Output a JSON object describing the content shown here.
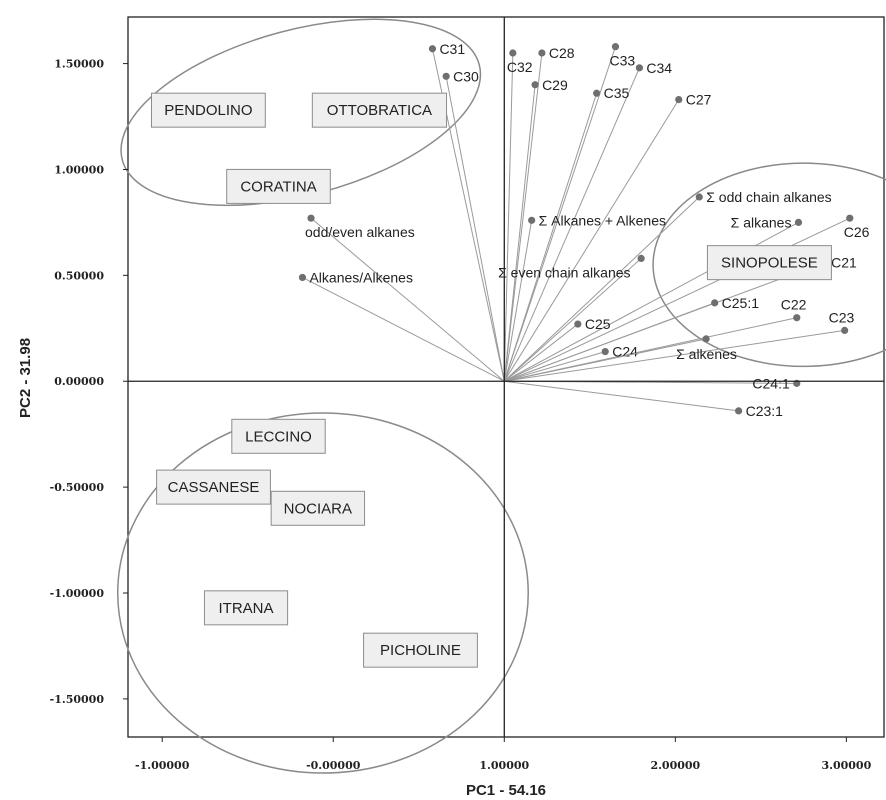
{
  "chart_data": {
    "type": "scatter",
    "subtype": "pca-biplot",
    "xlabel": "PC1 - 54.16",
    "ylabel": "PC2 - 31.98",
    "xlim": [
      -1.2,
      3.22
    ],
    "ylim": [
      -1.68,
      1.72
    ],
    "x_ticks": [
      {
        "value": -1.0,
        "label": "-1.00000"
      },
      {
        "value": 0.0,
        "label": "-0.00000"
      },
      {
        "value": 1.0,
        "label": "1.00000"
      },
      {
        "value": 2.0,
        "label": "2.00000"
      },
      {
        "value": 3.0,
        "label": "3.00000"
      }
    ],
    "y_ticks": [
      {
        "value": 1.5,
        "label": "1.50000"
      },
      {
        "value": 1.0,
        "label": "1.00000"
      },
      {
        "value": 0.5,
        "label": "0.50000"
      },
      {
        "value": 0.0,
        "label": "0.00000"
      },
      {
        "value": -0.5,
        "label": "-0.50000"
      },
      {
        "value": -1.0,
        "label": "-1.00000"
      },
      {
        "value": -1.5,
        "label": "-1.50000"
      }
    ],
    "origin": [
      1.0,
      0.0
    ],
    "grid": false,
    "variables": [
      {
        "name": "C31",
        "x": 0.58,
        "y": 1.57,
        "label_pos": "right"
      },
      {
        "name": "C30",
        "x": 0.66,
        "y": 1.44,
        "label_pos": "right"
      },
      {
        "name": "C32",
        "x": 1.05,
        "y": 1.55,
        "label_pos": "below"
      },
      {
        "name": "C28",
        "x": 1.22,
        "y": 1.55,
        "label_pos": "right"
      },
      {
        "name": "C29",
        "x": 1.18,
        "y": 1.4,
        "label_pos": "right"
      },
      {
        "name": "C33",
        "x": 1.65,
        "y": 1.58,
        "label_pos": "below"
      },
      {
        "name": "C34",
        "x": 1.79,
        "y": 1.48,
        "label_pos": "right"
      },
      {
        "name": "C35",
        "x": 1.54,
        "y": 1.36,
        "label_pos": "right"
      },
      {
        "name": "C27",
        "x": 2.02,
        "y": 1.33,
        "label_pos": "right"
      },
      {
        "name": "Σ odd chain alkanes",
        "x": 2.14,
        "y": 0.87,
        "label_pos": "right"
      },
      {
        "name": "Σ Alkanes + Alkenes",
        "x": 1.16,
        "y": 0.76,
        "label_pos": "right"
      },
      {
        "name": "Σ alkanes",
        "x": 2.72,
        "y": 0.75,
        "label_pos": "left"
      },
      {
        "name": "C26",
        "x": 3.02,
        "y": 0.77,
        "label_pos": "below"
      },
      {
        "name": "Σ even chain alkanes",
        "x": 1.8,
        "y": 0.58,
        "label_pos": "belowleft"
      },
      {
        "name": "C21",
        "x": 2.87,
        "y": 0.56,
        "label_pos": "right"
      },
      {
        "name": "C25:1",
        "x": 2.23,
        "y": 0.37,
        "label_pos": "right"
      },
      {
        "name": "C22",
        "x": 2.71,
        "y": 0.3,
        "label_pos": "above"
      },
      {
        "name": "C23",
        "x": 2.99,
        "y": 0.24,
        "label_pos": "above"
      },
      {
        "name": "C25",
        "x": 1.43,
        "y": 0.27,
        "label_pos": "right"
      },
      {
        "name": "C24",
        "x": 1.59,
        "y": 0.14,
        "label_pos": "right"
      },
      {
        "name": "Σ alkenes",
        "x": 2.18,
        "y": 0.2,
        "label_pos": "belowright"
      },
      {
        "name": "C24:1",
        "x": 2.71,
        "y": -0.01,
        "label_pos": "left"
      },
      {
        "name": "C23:1",
        "x": 2.37,
        "y": -0.14,
        "label_pos": "right"
      },
      {
        "name": "odd/even alkanes",
        "x": -0.13,
        "y": 0.77,
        "label_pos": "below"
      },
      {
        "name": "Alkanes/Alkenes",
        "x": -0.18,
        "y": 0.49,
        "label_pos": "right"
      }
    ],
    "groups": [
      {
        "name": "PENDOLINO",
        "x": -0.73,
        "y": 1.28
      },
      {
        "name": "OTTOBRATICA",
        "x": 0.27,
        "y": 1.28
      },
      {
        "name": "CORATINA",
        "x": -0.32,
        "y": 0.92
      },
      {
        "name": "SINOPOLESE",
        "x": 2.55,
        "y": 0.56
      },
      {
        "name": "LECCINO",
        "x": -0.32,
        "y": -0.26
      },
      {
        "name": "CASSANESE",
        "x": -0.7,
        "y": -0.5
      },
      {
        "name": "NOCIARA",
        "x": -0.09,
        "y": -0.6
      },
      {
        "name": "ITRANA",
        "x": -0.51,
        "y": -1.07
      },
      {
        "name": "PICHOLINE",
        "x": 0.51,
        "y": -1.27
      }
    ],
    "ellipses": [
      {
        "cx": -0.19,
        "cy": 1.27,
        "rx": 1.08,
        "ry": 0.39,
        "rotate": -15
      },
      {
        "cx": 2.75,
        "cy": 0.55,
        "rx": 0.88,
        "ry": 0.48,
        "rotate": 0
      },
      {
        "cx": -0.06,
        "cy": -1.0,
        "rx": 1.2,
        "ry": 0.85,
        "rotate": 0
      }
    ]
  }
}
